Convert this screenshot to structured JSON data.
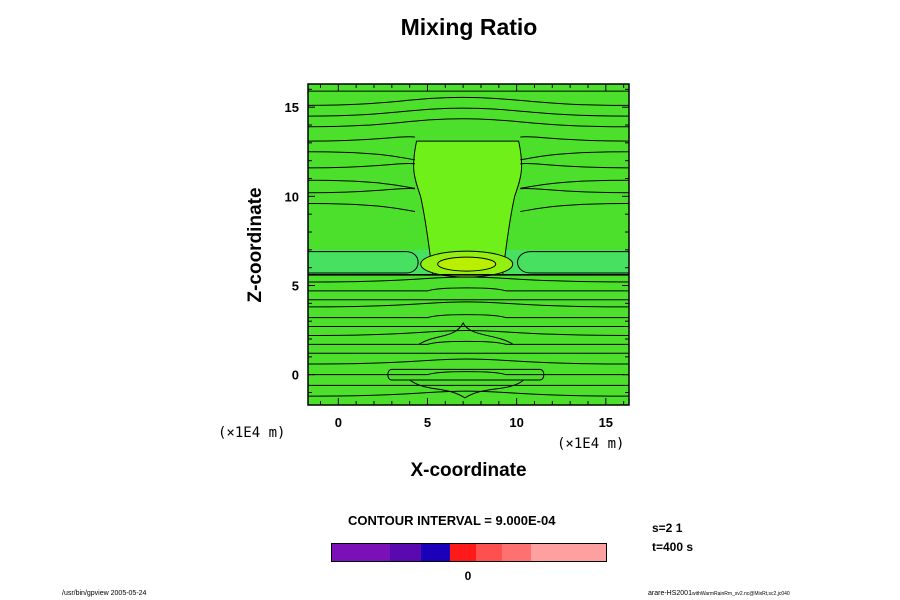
{
  "chart_data": {
    "type": "contour",
    "title": "Mixing Ratio",
    "xlabel": "X-coordinate",
    "ylabel": "Z-coordinate",
    "x_unit": "(×1E4 m)",
    "y_unit": "(×1E4 m)",
    "xlim": [
      -1.7,
      16.3
    ],
    "ylim": [
      -1.7,
      16.3
    ],
    "xticks": [
      0,
      5,
      10,
      15
    ],
    "yticks": [
      0,
      5,
      10,
      15
    ],
    "contour_interval_text": "CONTOUR INTERVAL = 9.000E-04",
    "colorbar": {
      "label": "0",
      "colors": [
        "#7b10b8",
        "#7b10b8",
        "#5a08b0",
        "#1a00b8",
        "#ff1a1a",
        "#ff5050",
        "#ff7070",
        "#ffa0a0",
        "#ffa0a0"
      ],
      "weights": [
        1.0,
        1.0,
        1.1,
        1.0,
        0.9,
        0.9,
        1.0,
        1.3,
        1.3
      ]
    },
    "features": {
      "central_column_x": [
        4.5,
        10.0
      ],
      "max_center": [
        7.2,
        6.2
      ],
      "band_level": 5.6
    }
  },
  "annotations": {
    "s_text": "s=2 1",
    "t_text": "t=400 s"
  },
  "footer": {
    "left": "/usr/bin/gpview 2005-05-24",
    "right_main": "arare-HS2001",
    "right_sub": "withWarmRainRm_sv2.nc@MixRt,sc2,jc040"
  },
  "colors": {
    "field_background": "#4ce02c",
    "column_fill": "#6ef018",
    "band_fill": "#48e060",
    "core_fill": "#94f010",
    "peak_fill": "#b8f000",
    "contour_line": "#000000"
  }
}
